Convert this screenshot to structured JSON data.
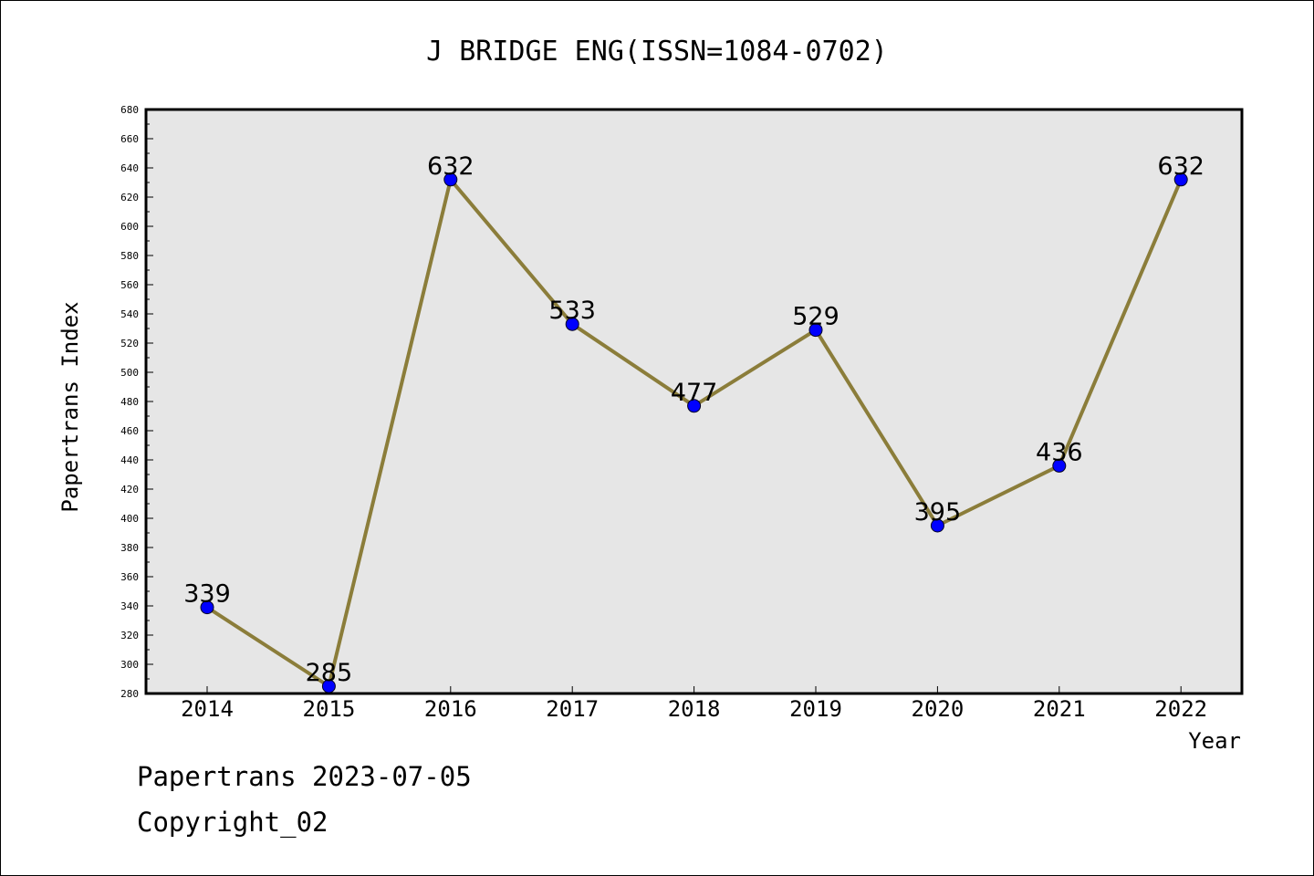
{
  "chart_data": {
    "type": "line",
    "title": "J BRIDGE ENG(ISSN=1084-0702)",
    "xlabel": "Year",
    "ylabel": "Papertrans Index",
    "categories": [
      "2014",
      "2015",
      "2016",
      "2017",
      "2018",
      "2019",
      "2020",
      "2021",
      "2022"
    ],
    "values": [
      339,
      285,
      632,
      533,
      477,
      529,
      395,
      436,
      632
    ],
    "value_labels": [
      "339",
      "285",
      "632",
      "533",
      "477",
      "529",
      "395",
      "436",
      "632"
    ],
    "ylim": [
      280,
      680
    ],
    "yticks": [
      280,
      300,
      320,
      340,
      360,
      380,
      400,
      420,
      440,
      460,
      480,
      500,
      520,
      540,
      560,
      580,
      600,
      620,
      640,
      660,
      680
    ],
    "ytick_labels": [
      "280",
      "300",
      "320",
      "340",
      "360",
      "380",
      "400",
      "420",
      "440",
      "460",
      "480",
      "500",
      "520",
      "540",
      "560",
      "580",
      "600",
      "620",
      "640",
      "660",
      "680"
    ],
    "grid": false,
    "legend": "none",
    "colors": {
      "line": "#8b7d3a",
      "marker": "#0000ff",
      "plot_background": "#e6e6e6"
    }
  },
  "footer": {
    "line1": "Papertrans 2023-07-05",
    "line2": "Copyright_02"
  }
}
